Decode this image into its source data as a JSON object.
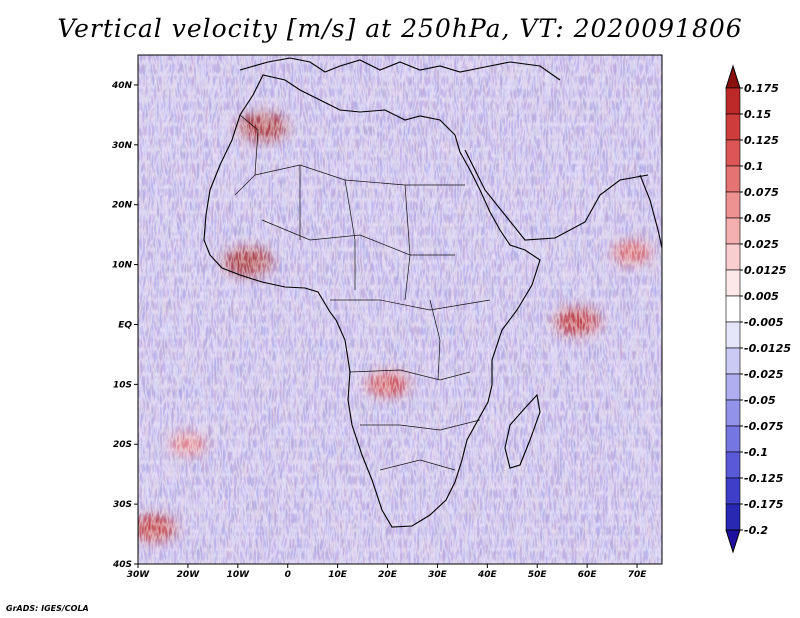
{
  "title": "Vertical velocity [m/s] at 250hPa, VT: 2020091806",
  "footer": "GrADS: IGES/COLA",
  "map": {
    "region": "Africa",
    "variable": "Vertical velocity",
    "units": "m/s",
    "level": "250hPa",
    "valid_time": "2020091806",
    "lon_range": [
      -30,
      75
    ],
    "lat_range": [
      -40,
      45
    ],
    "lon_ticks": [
      {
        "value": -30,
        "label": "30W"
      },
      {
        "value": -20,
        "label": "20W"
      },
      {
        "value": -10,
        "label": "10W"
      },
      {
        "value": 0,
        "label": "0"
      },
      {
        "value": 10,
        "label": "10E"
      },
      {
        "value": 20,
        "label": "20E"
      },
      {
        "value": 30,
        "label": "30E"
      },
      {
        "value": 40,
        "label": "40E"
      },
      {
        "value": 50,
        "label": "50E"
      },
      {
        "value": 60,
        "label": "60E"
      },
      {
        "value": 70,
        "label": "70E"
      }
    ],
    "lat_ticks": [
      {
        "value": 40,
        "label": "40N"
      },
      {
        "value": 30,
        "label": "30N"
      },
      {
        "value": 20,
        "label": "20N"
      },
      {
        "value": 10,
        "label": "10N"
      },
      {
        "value": 0,
        "label": "EQ"
      },
      {
        "value": -10,
        "label": "10S"
      },
      {
        "value": -20,
        "label": "20S"
      },
      {
        "value": -30,
        "label": "30S"
      },
      {
        "value": -40,
        "label": "40S"
      }
    ]
  },
  "colorbar": {
    "levels": [
      {
        "label": "0.175",
        "color": "#a01a1a"
      },
      {
        "label": "0.15",
        "color": "#bd2828"
      },
      {
        "label": "0.125",
        "color": "#cf3c3c"
      },
      {
        "label": "0.1",
        "color": "#dc5656"
      },
      {
        "label": "0.075",
        "color": "#e67373"
      },
      {
        "label": "0.05",
        "color": "#ee9191"
      },
      {
        "label": "0.025",
        "color": "#f4b0b0"
      },
      {
        "label": "0.0125",
        "color": "#f9cece"
      },
      {
        "label": "0.005",
        "color": "#fce8e8"
      },
      {
        "label": "-0.005",
        "color": "#ffffff"
      },
      {
        "label": "-0.0125",
        "color": "#e6e6fb"
      },
      {
        "label": "-0.025",
        "color": "#cacaf5"
      },
      {
        "label": "-0.05",
        "color": "#aeaef0"
      },
      {
        "label": "-0.075",
        "color": "#9292ea"
      },
      {
        "label": "-0.1",
        "color": "#7676e3"
      },
      {
        "label": "-0.125",
        "color": "#5a5ad8"
      },
      {
        "label": "-0.175",
        "color": "#3e3ec9"
      },
      {
        "label": "-0.2",
        "color": "#2828b2"
      }
    ],
    "top_arrow_color": "#8a1010",
    "bottom_arrow_color": "#2010a0"
  },
  "hotspots": [
    {
      "name": "morocco-ascent",
      "lon": -5,
      "lat": 33,
      "value": 0.175
    },
    {
      "name": "west-africa-ascent",
      "lon": -8,
      "lat": 10.5,
      "value": 0.175
    },
    {
      "name": "arabian-sea-ascent",
      "lon": 58,
      "lat": 0.5,
      "value": 0.15
    },
    {
      "name": "congo-ascent",
      "lon": 20,
      "lat": -10,
      "value": 0.125
    },
    {
      "name": "southwest-atlantic-ascent",
      "lon": -27,
      "lat": -34,
      "value": 0.15
    },
    {
      "name": "indian-ocean-ascent",
      "lon": 69,
      "lat": 12,
      "value": 0.1
    },
    {
      "name": "south-atlantic-band",
      "lon": -20,
      "lat": -20,
      "value": 0.075
    }
  ]
}
